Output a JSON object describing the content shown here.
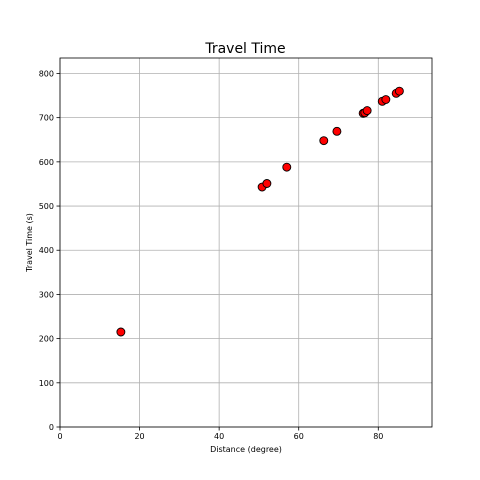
{
  "chart_data": {
    "type": "scatter",
    "title": "Travel Time",
    "xlabel": "Distance (degree)",
    "ylabel": "Travel Time (s)",
    "xlim": [
      0,
      93.5
    ],
    "ylim": [
      0,
      835
    ],
    "xticks": [
      0,
      20,
      40,
      60,
      80
    ],
    "yticks": [
      0,
      100,
      200,
      300,
      400,
      500,
      600,
      700,
      800
    ],
    "grid": true,
    "marker_color": "#ff0000",
    "marker_edge_color": "#000000",
    "points": [
      {
        "x": 15.3,
        "y": 215
      },
      {
        "x": 50.8,
        "y": 543
      },
      {
        "x": 52.0,
        "y": 551
      },
      {
        "x": 57.0,
        "y": 588
      },
      {
        "x": 66.3,
        "y": 648
      },
      {
        "x": 69.6,
        "y": 669
      },
      {
        "x": 76.2,
        "y": 710
      },
      {
        "x": 76.6,
        "y": 711
      },
      {
        "x": 77.2,
        "y": 716
      },
      {
        "x": 81.0,
        "y": 737
      },
      {
        "x": 81.9,
        "y": 741
      },
      {
        "x": 84.5,
        "y": 755
      },
      {
        "x": 85.3,
        "y": 760
      }
    ]
  }
}
